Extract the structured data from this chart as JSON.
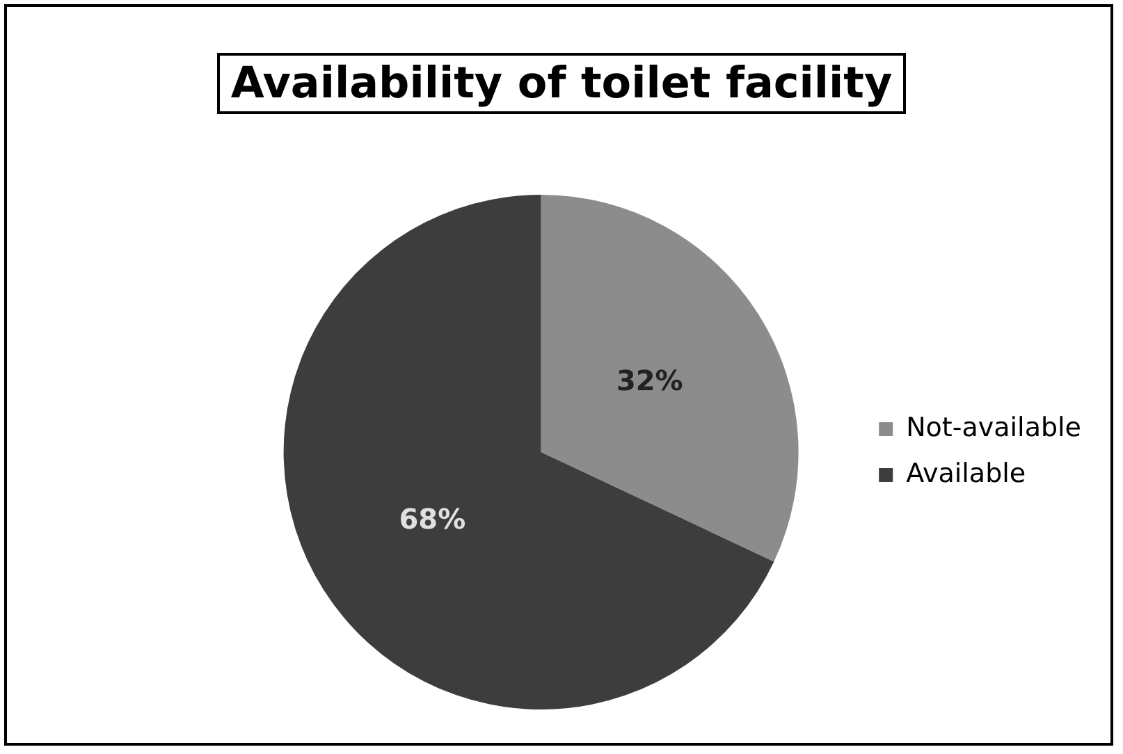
{
  "chart_data": {
    "type": "pie",
    "title": "Availability of toilet facility",
    "categories": [
      "Not-available",
      "Available"
    ],
    "values": [
      32,
      68
    ],
    "colors": [
      "#8c8c8c",
      "#3d3d3d"
    ],
    "value_labels": [
      "32%",
      "68%"
    ],
    "legend": "right"
  }
}
